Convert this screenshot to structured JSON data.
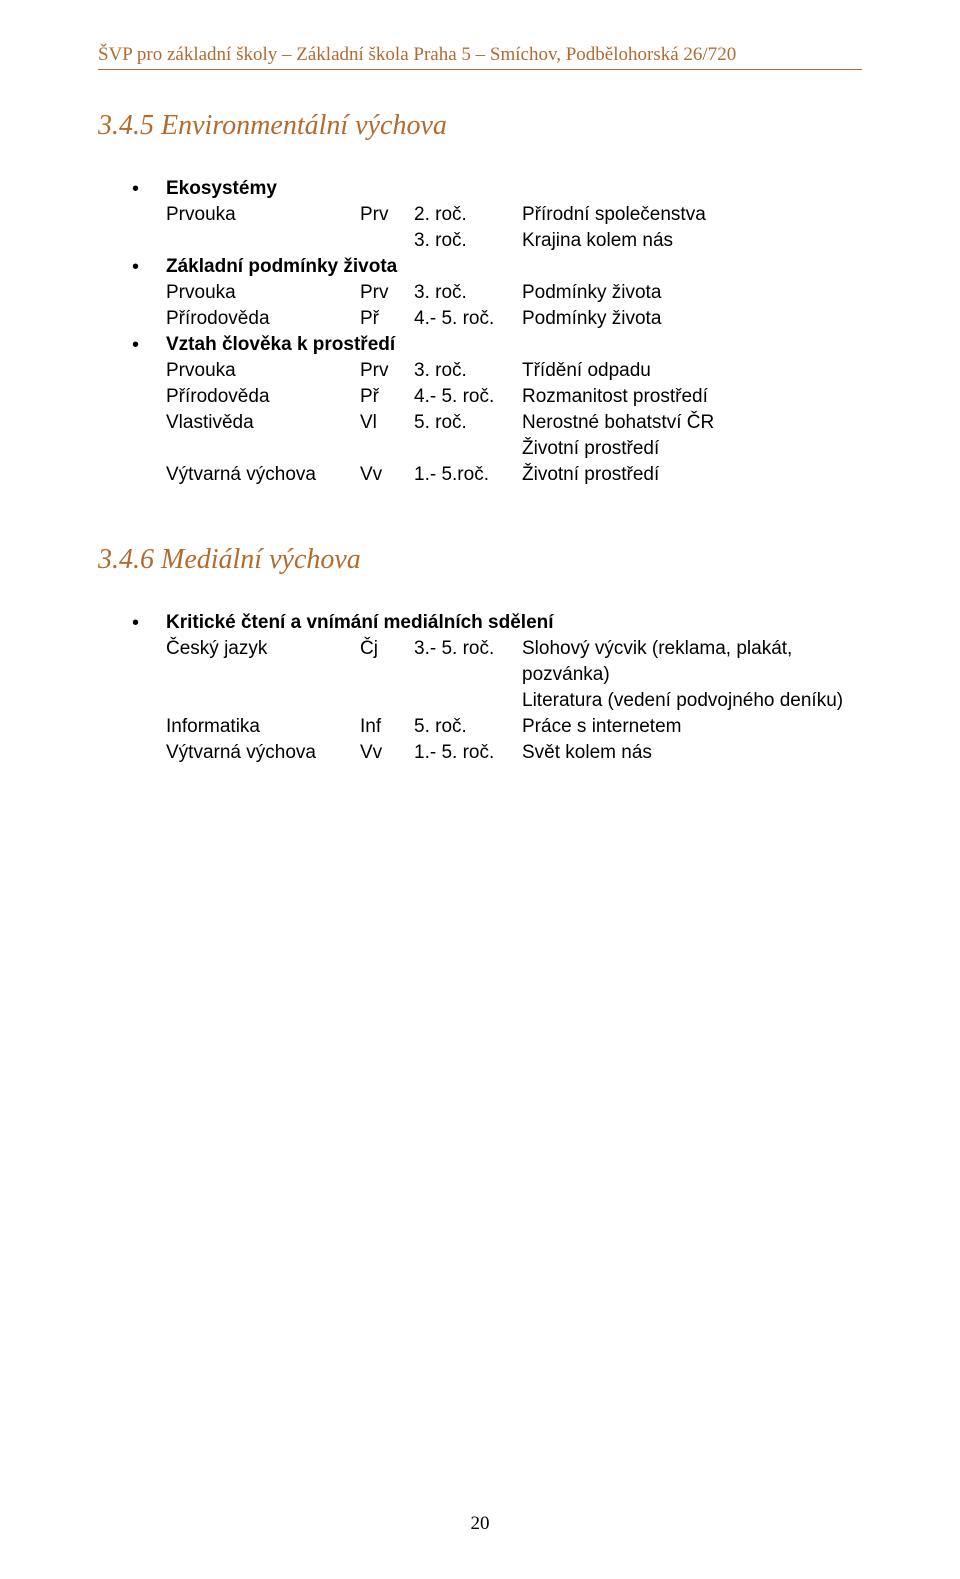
{
  "colors": {
    "accent": "#b26b2f",
    "text": "#000000",
    "background": "#ffffff"
  },
  "typography": {
    "body_font": "Verdana",
    "header_font": "Times New Roman",
    "heading_font": "Comic Sans MS",
    "body_size_pt": 14,
    "heading_size_pt": 21
  },
  "header": "ŠVP pro základní školy – Základní škola Praha 5 – Smíchov, Podbělohorská 26/720",
  "page_number": "20",
  "sections": [
    {
      "heading": "3.4.5  Environmentální výchova",
      "groups": [
        {
          "title": "Ekosystémy",
          "rows": [
            {
              "subject": "Prvouka",
              "abbr": "Prv",
              "year": "2. roč.",
              "desc": "Přírodní společenstva"
            },
            {
              "subject": "",
              "abbr": "",
              "year": "3. roč.",
              "desc": "Krajina kolem nás"
            }
          ]
        },
        {
          "title": "Základní podmínky života",
          "rows": [
            {
              "subject": "Prvouka",
              "abbr": "Prv",
              "year": "3. roč.",
              "desc": "Podmínky života"
            },
            {
              "subject": "Přírodověda",
              "abbr": "Př",
              "year": "4.- 5. roč.",
              "desc": "Podmínky života"
            }
          ]
        },
        {
          "title": "Vztah člověka k prostředí",
          "rows": [
            {
              "subject": "Prvouka",
              "abbr": "Prv",
              "year": "3. roč.",
              "desc": "Třídění odpadu"
            },
            {
              "subject": "Přírodověda",
              "abbr": "Př",
              "year": "4.- 5. roč.",
              "desc": "Rozmanitost prostředí"
            },
            {
              "subject": "Vlastivěda",
              "abbr": "Vl",
              "year": "5. roč.",
              "desc": "Nerostné bohatství ČR"
            },
            {
              "subject": "",
              "abbr": "",
              "year": "",
              "desc": "Životní prostředí"
            },
            {
              "subject": "Výtvarná výchova",
              "abbr": "Vv",
              "year": "1.- 5.roč.",
              "desc": "Životní prostředí"
            }
          ]
        }
      ]
    },
    {
      "heading": "3.4.6  Mediální výchova",
      "groups": [
        {
          "title": "Kritické čtení a vnímání mediálních sdělení",
          "rows": [
            {
              "subject": "Český jazyk",
              "abbr": "Čj",
              "year": "3.- 5. roč.",
              "desc": "Slohový výcvik (reklama, plakát, pozvánka)"
            },
            {
              "subject": "",
              "abbr": "",
              "year": "",
              "desc": "Literatura (vedení podvojného deníku)"
            },
            {
              "subject": "Informatika",
              "abbr": "Inf",
              "year": "5. roč.",
              "desc": "Práce s internetem"
            },
            {
              "subject": "Výtvarná výchova",
              "abbr": "Vv",
              "year": "1.- 5. roč.",
              "desc": "Svět kolem nás"
            }
          ]
        }
      ]
    }
  ]
}
